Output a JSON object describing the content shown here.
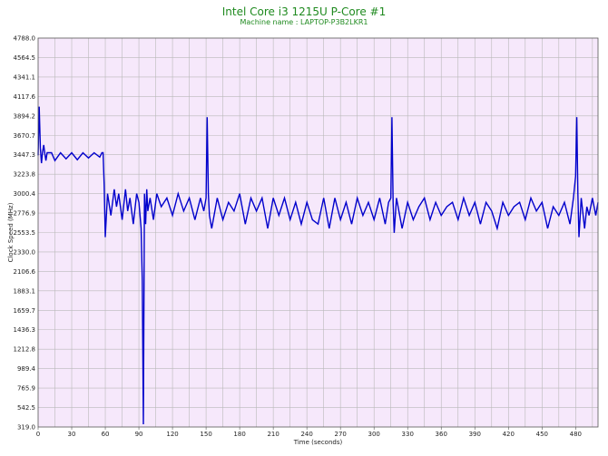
{
  "header": {
    "title": "Intel Core i3 1215U P-Core #1",
    "subtitle": "Machine name : LAPTOP-P3B2LKR1"
  },
  "colors": {
    "plot_bg": "#f6e8fb",
    "grid": "#b9b9b9",
    "series": "#0000cc",
    "title": "#1f8a1f"
  },
  "chart_data": {
    "type": "line",
    "title": "Intel Core i3 1215U P-Core #1",
    "subtitle": "Machine name : LAPTOP-P3B2LKR1",
    "xlabel": "Time (seconds)",
    "ylabel": "Clock Speed (MHz)",
    "xlim": [
      0,
      500
    ],
    "ylim": [
      319.0,
      4788.0
    ],
    "xticks": [
      "0",
      "30",
      "60",
      "90",
      "120",
      "150",
      "180",
      "210",
      "240",
      "270",
      "300",
      "330",
      "360",
      "390",
      "420",
      "450",
      "480"
    ],
    "yticks": [
      "319.0",
      "542.5",
      "765.9",
      "989.4",
      "1212.8",
      "1436.3",
      "1659.7",
      "1883.1",
      "2106.6",
      "2330.0",
      "2553.5",
      "2776.9",
      "3000.4",
      "3223.8",
      "3447.3",
      "3670.7",
      "3894.2",
      "4117.6",
      "4341.1",
      "4564.5",
      "4788.0"
    ],
    "grid": true,
    "legend": "none",
    "series": [
      {
        "x": [
          0,
          1,
          2,
          3,
          4,
          5,
          6,
          7,
          8,
          10,
          12,
          15,
          20,
          25,
          30,
          35,
          40,
          45,
          50,
          55,
          57,
          58,
          59,
          60,
          62,
          65,
          68,
          70,
          72,
          75,
          78,
          80,
          82,
          85,
          88,
          90,
          92,
          93,
          94,
          95,
          96,
          97,
          98,
          100,
          103,
          106,
          110,
          115,
          120,
          125,
          130,
          135,
          140,
          145,
          148,
          150,
          151,
          152,
          153,
          155,
          160,
          165,
          170,
          175,
          180,
          185,
          190,
          195,
          200,
          205,
          210,
          215,
          220,
          225,
          230,
          235,
          240,
          245,
          250,
          255,
          260,
          265,
          270,
          275,
          280,
          285,
          290,
          295,
          300,
          305,
          310,
          313,
          315,
          316,
          317,
          318,
          320,
          325,
          330,
          335,
          340,
          345,
          350,
          355,
          360,
          365,
          370,
          375,
          380,
          385,
          390,
          395,
          400,
          405,
          410,
          415,
          420,
          425,
          430,
          435,
          440,
          445,
          450,
          455,
          460,
          465,
          470,
          475,
          478,
          480,
          481,
          482,
          483,
          485,
          488,
          490,
          492,
          495,
          498,
          500
        ],
        "y": [
          3440,
          4000,
          3520,
          3350,
          3480,
          3560,
          3460,
          3380,
          3470,
          3470,
          3470,
          3380,
          3470,
          3400,
          3470,
          3390,
          3470,
          3410,
          3470,
          3420,
          3470,
          3470,
          3100,
          2500,
          3000,
          2750,
          3050,
          2850,
          3000,
          2700,
          3050,
          2800,
          2950,
          2650,
          3000,
          2900,
          2600,
          2000,
          350,
          3000,
          2650,
          3050,
          2800,
          2950,
          2700,
          3000,
          2850,
          2950,
          2750,
          3000,
          2800,
          2950,
          2700,
          2950,
          2800,
          2950,
          3880,
          3000,
          2750,
          2600,
          2950,
          2700,
          2900,
          2800,
          3000,
          2650,
          2950,
          2800,
          2950,
          2600,
          2950,
          2750,
          2950,
          2700,
          2900,
          2650,
          2900,
          2700,
          2650,
          2950,
          2600,
          2950,
          2700,
          2900,
          2650,
          2950,
          2750,
          2900,
          2700,
          2950,
          2650,
          2900,
          2950,
          3880,
          2900,
          2550,
          2950,
          2600,
          2900,
          2700,
          2850,
          2950,
          2700,
          2900,
          2750,
          2850,
          2900,
          2700,
          2950,
          2750,
          2900,
          2650,
          2900,
          2800,
          2600,
          2900,
          2750,
          2850,
          2900,
          2700,
          2950,
          2800,
          2900,
          2600,
          2850,
          2750,
          2900,
          2650,
          2950,
          3200,
          3880,
          3000,
          2500,
          2950,
          2600,
          2850,
          2750,
          2950,
          2750,
          2900
        ]
      }
    ]
  }
}
